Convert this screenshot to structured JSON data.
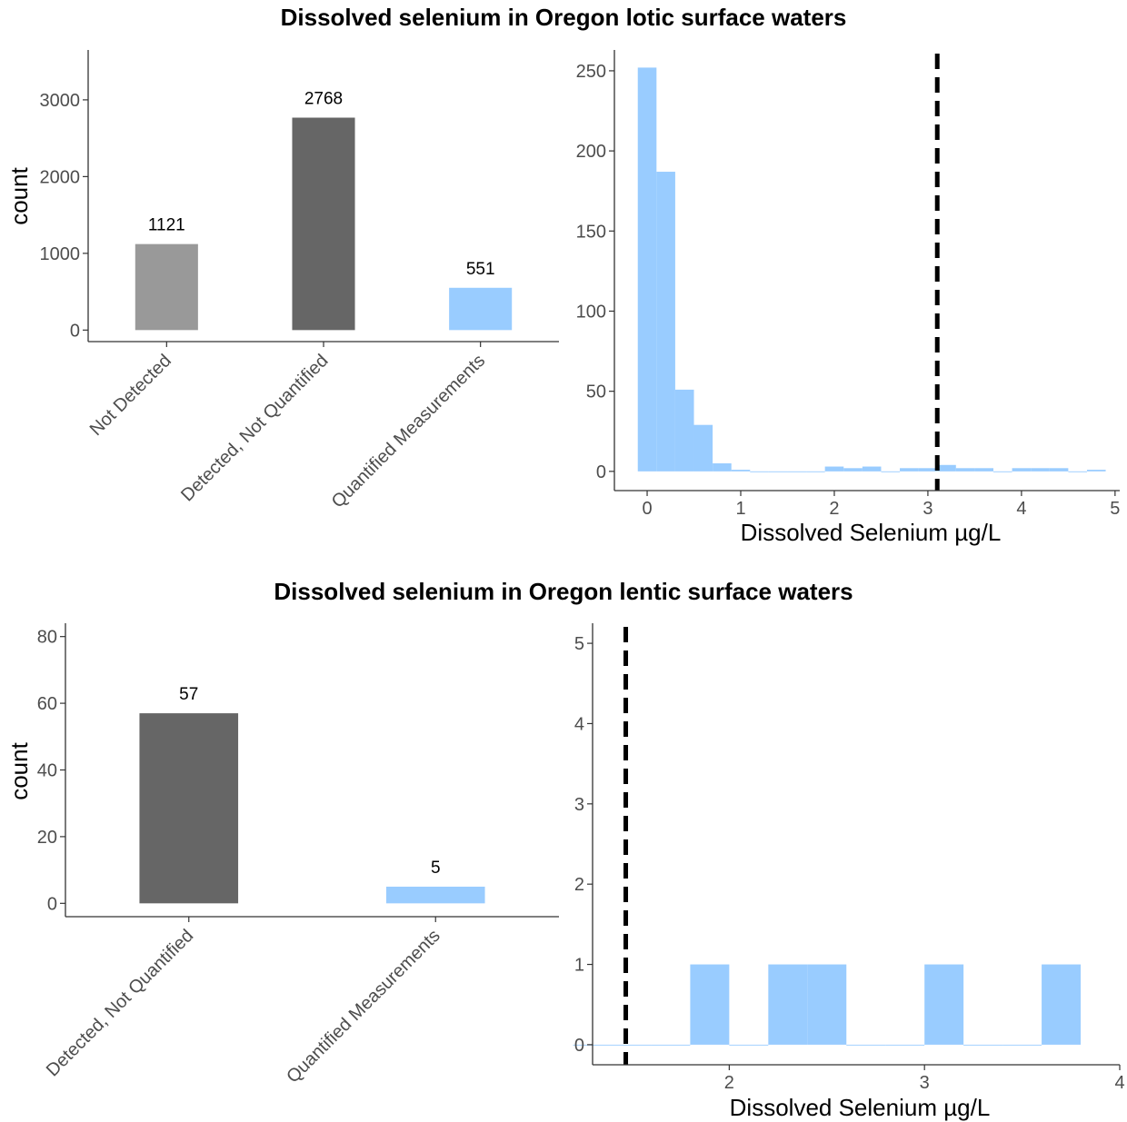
{
  "colors": {
    "not_detected": "#999999",
    "detected_not_quantified": "#666666",
    "quantified": "#99CCFF",
    "threshold_line": "#000000"
  },
  "chart_data": [
    {
      "id": "lotic-counts",
      "type": "bar",
      "title": "Dissolved selenium in Oregon lotic surface waters",
      "xlabel": "",
      "ylabel": "count",
      "categories": [
        "Not Detected",
        "Detected, Not Quantified",
        "Quantified Measurements"
      ],
      "values": [
        1121,
        2768,
        551
      ],
      "value_labels": [
        "1121",
        "2768",
        "551"
      ],
      "bar_colors": [
        "#999999",
        "#666666",
        "#99CCFF"
      ],
      "ylim": [
        -150,
        3650
      ],
      "yticks": [
        0,
        1000,
        2000,
        3000
      ],
      "grid": false
    },
    {
      "id": "lotic-histogram",
      "type": "bar",
      "subtype": "histogram",
      "xlabel": "Dissolved Selenium µg/L",
      "ylabel": "",
      "bin_width": 0.2,
      "x": [
        0.0,
        0.2,
        0.4,
        0.6,
        0.8,
        1.0,
        1.2,
        1.4,
        1.6,
        1.8,
        2.0,
        2.2,
        2.4,
        2.6,
        2.8,
        3.0,
        3.2,
        3.4,
        3.6,
        3.8,
        4.0,
        4.2,
        4.4,
        4.6,
        4.8
      ],
      "values": [
        252,
        187,
        51,
        29,
        5,
        1,
        0,
        0,
        0,
        0,
        3,
        2,
        3,
        0,
        2,
        2,
        4,
        2,
        2,
        0,
        2,
        2,
        2,
        0,
        1
      ],
      "threshold": 3.1,
      "xlim": [
        -0.35,
        5.05
      ],
      "ylim": [
        -12,
        263
      ],
      "xticks": [
        0,
        1,
        2,
        3,
        4,
        5
      ],
      "yticks": [
        0,
        50,
        100,
        150,
        200,
        250
      ],
      "bar_color": "#99CCFF",
      "grid": false
    },
    {
      "id": "lentic-counts",
      "type": "bar",
      "title": "Dissolved selenium in Oregon lentic surface waters",
      "xlabel": "",
      "ylabel": "count",
      "categories": [
        "Detected, Not Quantified",
        "Quantified Measurements"
      ],
      "values": [
        57,
        5
      ],
      "value_labels": [
        "57",
        "5"
      ],
      "bar_colors": [
        "#666666",
        "#99CCFF"
      ],
      "ylim": [
        -4,
        84
      ],
      "yticks": [
        0,
        20,
        40,
        60,
        80
      ],
      "grid": false
    },
    {
      "id": "lentic-histogram",
      "type": "bar",
      "subtype": "histogram",
      "xlabel": "Dissolved Selenium µg/L",
      "ylabel": "",
      "bin_width": 0.2,
      "x": [
        1.3,
        1.5,
        1.7,
        1.9,
        2.1,
        2.3,
        2.5,
        2.7,
        2.9,
        3.1,
        3.3,
        3.5,
        3.7
      ],
      "values": [
        0,
        0,
        0,
        1,
        0,
        1,
        1,
        0,
        0,
        1,
        0,
        0,
        1
      ],
      "threshold": 1.47,
      "xlim": [
        1.3,
        4.0
      ],
      "ylim": [
        -0.25,
        5.25
      ],
      "xticks": [
        2,
        3,
        4
      ],
      "yticks": [
        0,
        1,
        2,
        3,
        4,
        5
      ],
      "bar_color": "#99CCFF",
      "grid": false
    }
  ]
}
